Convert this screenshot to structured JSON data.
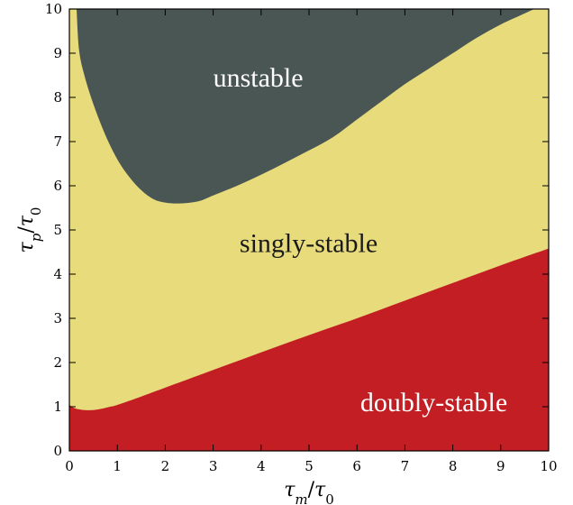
{
  "chart_data": {
    "type": "area",
    "xlabel": "τ_m/τ_0",
    "ylabel": "τ_p/τ_0",
    "xlim": [
      0,
      10
    ],
    "ylim": [
      0,
      10
    ],
    "xticks": [
      0,
      1,
      2,
      3,
      4,
      5,
      6,
      7,
      8,
      9,
      10
    ],
    "yticks": [
      0,
      1,
      2,
      3,
      4,
      5,
      6,
      7,
      8,
      9,
      10
    ],
    "grid": false,
    "regions": [
      {
        "name": "unstable",
        "color": "#4a5654",
        "label_at": [
          3.0,
          8.25
        ]
      },
      {
        "name": "singly-stable",
        "color": "#e8db7c",
        "label_at": [
          3.55,
          4.5
        ]
      },
      {
        "name": "doubly-stable",
        "color": "#c21e24",
        "label_at": [
          6.07,
          0.9
        ]
      }
    ],
    "upper_boundary": {
      "x": [
        0.15,
        0.2,
        0.3,
        0.5,
        0.75,
        1.0,
        1.25,
        1.5,
        1.75,
        2.0,
        2.3,
        2.7,
        3.0,
        3.5,
        4.0,
        4.5,
        5.0,
        5.5,
        6.0,
        6.5,
        7.0,
        7.5,
        8.0,
        8.5,
        9.0,
        9.5,
        9.7
      ],
      "y": [
        10.0,
        9.1,
        8.55,
        7.85,
        7.15,
        6.6,
        6.2,
        5.9,
        5.7,
        5.62,
        5.6,
        5.65,
        5.78,
        6.0,
        6.25,
        6.52,
        6.8,
        7.1,
        7.5,
        7.9,
        8.3,
        8.65,
        9.0,
        9.35,
        9.65,
        9.9,
        10.0
      ]
    },
    "lower_boundary": {
      "x": [
        0.0,
        0.1,
        0.25,
        0.4,
        0.55,
        0.7,
        0.85,
        1.0,
        1.5,
        2.0,
        3.0,
        4.0,
        5.0,
        6.0,
        7.0,
        8.0,
        9.0,
        10.0
      ],
      "y": [
        1.04,
        0.97,
        0.93,
        0.92,
        0.93,
        0.96,
        1.0,
        1.04,
        1.23,
        1.43,
        1.83,
        2.23,
        2.62,
        3.0,
        3.4,
        3.8,
        4.2,
        4.58
      ]
    }
  }
}
